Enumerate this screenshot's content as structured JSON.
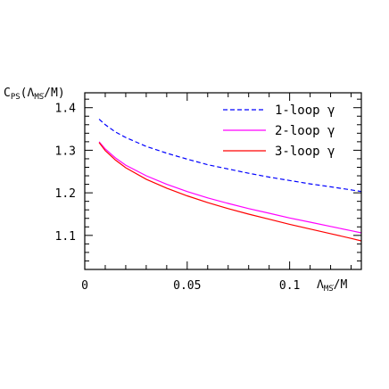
{
  "chart_data": {
    "type": "line",
    "title": "",
    "ylabel": {
      "main": "C",
      "sub": "PS",
      "open": "(Λ",
      "over": "MS",
      "close": "/M)"
    },
    "xlabel": {
      "main": "Λ",
      "over": "MS",
      "close": "/M"
    },
    "xlim": [
      0,
      0.135
    ],
    "ylim": [
      1.02,
      1.435
    ],
    "x_ticks": [
      {
        "v": 0,
        "label": "0"
      },
      {
        "v": 0.05,
        "label": "0.05"
      },
      {
        "v": 0.1,
        "label": "0.1"
      }
    ],
    "y_ticks": [
      {
        "v": 1.1,
        "label": "1.1"
      },
      {
        "v": 1.2,
        "label": "1.2"
      },
      {
        "v": 1.3,
        "label": "1.3"
      },
      {
        "v": 1.4,
        "label": "1.4"
      }
    ],
    "legend_position": "top-right",
    "series": [
      {
        "name": "1-loop γ",
        "color": "#0000ff",
        "dash": "dashed",
        "x": [
          0.007,
          0.01,
          0.015,
          0.02,
          0.03,
          0.04,
          0.05,
          0.06,
          0.07,
          0.08,
          0.09,
          0.1,
          0.11,
          0.12,
          0.13,
          0.135
        ],
        "y": [
          1.373,
          1.36,
          1.343,
          1.33,
          1.309,
          1.293,
          1.279,
          1.266,
          1.256,
          1.246,
          1.237,
          1.229,
          1.221,
          1.214,
          1.207,
          1.203
        ]
      },
      {
        "name": "2-loop γ",
        "color": "#ff00ff",
        "dash": "solid",
        "x": [
          0.007,
          0.01,
          0.015,
          0.02,
          0.03,
          0.04,
          0.05,
          0.06,
          0.07,
          0.08,
          0.09,
          0.1,
          0.11,
          0.12,
          0.13,
          0.135
        ],
        "y": [
          1.32,
          1.303,
          1.282,
          1.265,
          1.24,
          1.22,
          1.203,
          1.188,
          1.175,
          1.163,
          1.152,
          1.141,
          1.131,
          1.121,
          1.111,
          1.106
        ]
      },
      {
        "name": "3-loop γ",
        "color": "#ff0000",
        "dash": "solid",
        "x": [
          0.007,
          0.01,
          0.015,
          0.02,
          0.03,
          0.04,
          0.05,
          0.06,
          0.07,
          0.08,
          0.09,
          0.1,
          0.11,
          0.12,
          0.13,
          0.135
        ],
        "y": [
          1.318,
          1.299,
          1.277,
          1.259,
          1.232,
          1.211,
          1.193,
          1.177,
          1.163,
          1.15,
          1.138,
          1.126,
          1.115,
          1.104,
          1.093,
          1.087
        ]
      }
    ]
  }
}
